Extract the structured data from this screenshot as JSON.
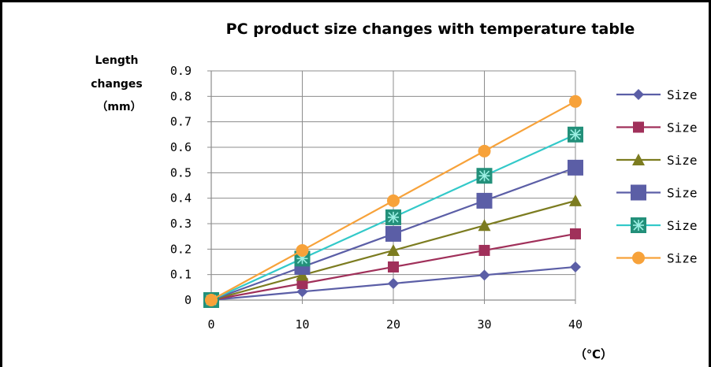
{
  "chart_data": {
    "type": "line",
    "title": "PC product size changes with temperature  table",
    "ylabel": [
      "Length",
      "changes",
      "（mm）"
    ],
    "xlabel": "（℃）",
    "x": [
      0,
      10,
      20,
      30,
      40
    ],
    "xticks": [
      "0",
      "10",
      "20",
      "30",
      "40"
    ],
    "yticks": [
      "0",
      "0.1",
      "0.2",
      "0.3",
      "0.4",
      "0.5",
      "0.6",
      "0.7",
      "0.8",
      "0.9"
    ],
    "ylim": [
      0,
      0.9
    ],
    "grid": true,
    "legend_position": "right",
    "series": [
      {
        "name": "Size",
        "color": "#5b5ea6",
        "marker": "diamond",
        "values": [
          0,
          0.033,
          0.065,
          0.098,
          0.13
        ]
      },
      {
        "name": "Size",
        "color": "#a0305a",
        "marker": "square",
        "values": [
          0,
          0.065,
          0.13,
          0.195,
          0.26
        ]
      },
      {
        "name": "Size",
        "color": "#7c7c20",
        "marker": "triangle",
        "values": [
          0,
          0.098,
          0.195,
          0.293,
          0.39
        ]
      },
      {
        "name": "Size",
        "color": "#5b5ea6",
        "marker": "bigsquare",
        "values": [
          0,
          0.13,
          0.26,
          0.39,
          0.52
        ]
      },
      {
        "name": "Size",
        "color": "#33c9c9",
        "marker": "star",
        "values": [
          0,
          0.163,
          0.325,
          0.488,
          0.65
        ]
      },
      {
        "name": "Size",
        "color": "#f7a23a",
        "marker": "circle",
        "values": [
          0,
          0.195,
          0.39,
          0.585,
          0.78
        ]
      }
    ]
  }
}
